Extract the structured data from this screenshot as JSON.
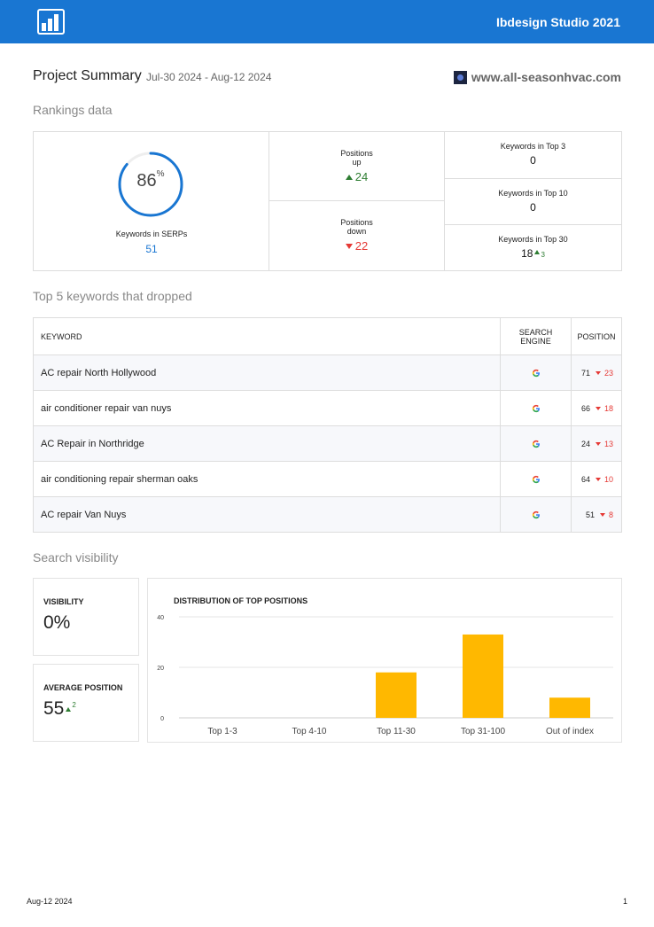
{
  "header": {
    "logo_icon": "bar-chart-icon",
    "studio_name": "Ibdesign Studio 2021",
    "background_color": "#1976d2"
  },
  "project": {
    "title": "Project Summary",
    "date_range": "Jul-30 2024 - Aug-12 2024",
    "domain": "www.all-seasonhvac.com",
    "domain_icon": "site-favicon-icon"
  },
  "rankings": {
    "section_title": "Rankings data",
    "serp_percent": 86,
    "serp_percent_display": "86",
    "serp_percent_sign": "%",
    "serp_label": "Keywords in SERPs",
    "serp_value": "51",
    "positions_up_label_1": "Positions",
    "positions_up_label_2": "up",
    "positions_up_value": "24",
    "positions_down_label_1": "Positions",
    "positions_down_label_2": "down",
    "positions_down_value": "22",
    "top3_label": "Keywords in Top 3",
    "top3_value": "0",
    "top10_label": "Keywords in Top 10",
    "top10_value": "0",
    "top30_label": "Keywords in Top 30",
    "top30_value": "18",
    "top30_change": "3",
    "colors": {
      "accent": "#1976d2",
      "up": "#2e7d32",
      "down": "#e53935"
    }
  },
  "dropped": {
    "section_title": "Top 5 keywords that dropped",
    "headers": {
      "keyword": "KEYWORD",
      "engine_1": "SEARCH",
      "engine_2": "ENGINE",
      "position": "POSITION"
    },
    "rows": [
      {
        "keyword": "AC repair North Hollywood",
        "engine_icon": "google-icon",
        "position": "71",
        "change": "23"
      },
      {
        "keyword": "air conditioner repair van nuys",
        "engine_icon": "google-icon",
        "position": "66",
        "change": "18"
      },
      {
        "keyword": "AC Repair in Northridge",
        "engine_icon": "google-icon",
        "position": "24",
        "change": "13"
      },
      {
        "keyword": "air conditioning repair sherman oaks",
        "engine_icon": "google-icon",
        "position": "64",
        "change": "10"
      },
      {
        "keyword": "AC repair Van Nuys",
        "engine_icon": "google-icon",
        "position": "51",
        "change": "8"
      }
    ]
  },
  "visibility": {
    "section_title": "Search visibility",
    "visibility_label": "VISIBILITY",
    "visibility_value": "0%",
    "avg_position_label": "AVERAGE POSITION",
    "avg_position_value": "55",
    "avg_position_change": "2"
  },
  "chart_data": {
    "type": "bar",
    "title": "DISTRIBUTION OF TOP POSITIONS",
    "categories": [
      "Top 1-3",
      "Top 4-10",
      "Top 11-30",
      "Top 31-100",
      "Out of index"
    ],
    "values": [
      0,
      0,
      18,
      33,
      8
    ],
    "yticks": [
      0,
      20,
      40
    ],
    "ylim": [
      0,
      40
    ],
    "xlabel": "",
    "ylabel": "",
    "grid": true,
    "bar_color": "#ffb800"
  },
  "footer": {
    "date": "Aug-12 2024",
    "page": "1"
  }
}
